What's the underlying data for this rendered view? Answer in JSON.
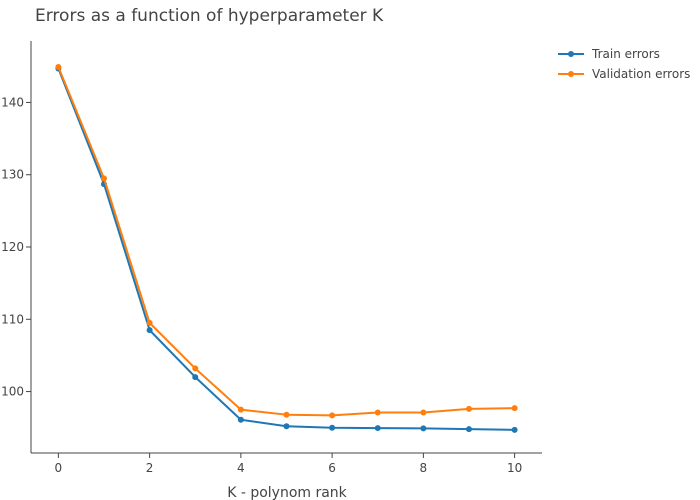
{
  "chart_data": {
    "type": "line",
    "title": "Errors as a function of hyperparameter K",
    "xlabel": "K - polynom rank",
    "ylabel": "",
    "x": [
      0,
      1,
      2,
      3,
      4,
      5,
      6,
      7,
      8,
      9,
      10
    ],
    "xlim": [
      -0.6,
      10.6
    ],
    "ylim": [
      91.5,
      148.5
    ],
    "xticks": [
      0,
      2,
      4,
      6,
      8,
      10
    ],
    "yticks": [
      100,
      110,
      120,
      130,
      140
    ],
    "grid": false,
    "legend_position": "top-right",
    "series": [
      {
        "name": "Train errors",
        "color": "#1f77b4",
        "values": [
          144.7,
          128.7,
          108.5,
          102.0,
          96.1,
          95.2,
          95.0,
          94.95,
          94.9,
          94.8,
          94.7
        ]
      },
      {
        "name": "Validation errors",
        "color": "#ff7f0e",
        "values": [
          144.9,
          129.5,
          109.5,
          103.2,
          97.5,
          96.8,
          96.7,
          97.1,
          97.1,
          97.6,
          97.7
        ]
      }
    ]
  }
}
